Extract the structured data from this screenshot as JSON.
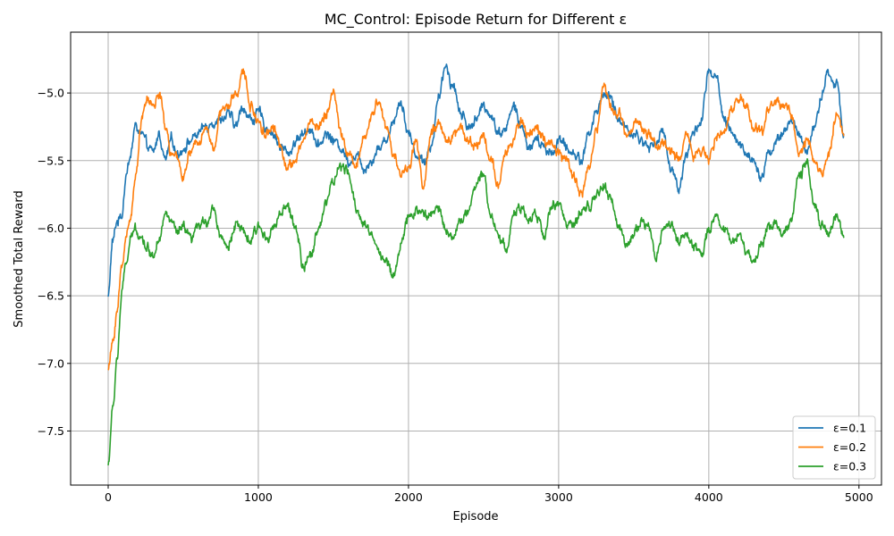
{
  "chart_data": {
    "type": "line",
    "title": "MC_Control: Episode Return for Different ε",
    "xlabel": "Episode",
    "ylabel": "Smoothed Total Reward",
    "xlim": [
      -250,
      5150
    ],
    "ylim": [
      -7.9,
      -4.55
    ],
    "xticks": [
      0,
      1000,
      2000,
      3000,
      4000,
      5000
    ],
    "yticks": [
      -5.0,
      -5.5,
      -6.0,
      -6.5,
      -7.0,
      -7.5
    ],
    "xtick_labels": [
      "0",
      "1000",
      "2000",
      "3000",
      "4000",
      "5000"
    ],
    "ytick_labels": [
      "−5.0",
      "−5.5",
      "−6.0",
      "−6.5",
      "−7.0",
      "−7.5"
    ],
    "grid": true,
    "legend": "bottom-right",
    "x_range": [
      0,
      4900
    ],
    "series": [
      {
        "name": "ε=0.1",
        "color": "#1f77b4",
        "x": [
          0,
          30,
          60,
          90,
          120,
          150,
          180,
          220,
          260,
          300,
          340,
          380,
          420,
          460,
          500,
          550,
          600,
          650,
          700,
          750,
          800,
          850,
          900,
          950,
          1000,
          1050,
          1100,
          1150,
          1200,
          1250,
          1300,
          1350,
          1400,
          1450,
          1500,
          1550,
          1600,
          1650,
          1700,
          1750,
          1800,
          1850,
          1900,
          1950,
          2000,
          2050,
          2100,
          2150,
          2200,
          2250,
          2300,
          2350,
          2400,
          2450,
          2500,
          2550,
          2600,
          2650,
          2700,
          2750,
          2800,
          2850,
          2900,
          2950,
          3000,
          3050,
          3100,
          3150,
          3200,
          3250,
          3300,
          3350,
          3400,
          3450,
          3500,
          3550,
          3600,
          3650,
          3700,
          3750,
          3800,
          3850,
          3900,
          3950,
          4000,
          4050,
          4100,
          4150,
          4200,
          4250,
          4300,
          4350,
          4400,
          4450,
          4500,
          4550,
          4600,
          4650,
          4700,
          4750,
          4800,
          4850,
          4900
        ],
        "y": [
          -6.5,
          -6.1,
          -5.95,
          -5.9,
          -5.6,
          -5.45,
          -5.25,
          -5.3,
          -5.4,
          -5.45,
          -5.3,
          -5.5,
          -5.35,
          -5.45,
          -5.4,
          -5.35,
          -5.3,
          -5.25,
          -5.2,
          -5.2,
          -5.15,
          -5.25,
          -5.1,
          -5.2,
          -5.15,
          -5.25,
          -5.3,
          -5.4,
          -5.45,
          -5.35,
          -5.3,
          -5.25,
          -5.4,
          -5.3,
          -5.35,
          -5.4,
          -5.5,
          -5.45,
          -5.55,
          -5.5,
          -5.4,
          -5.35,
          -5.2,
          -5.05,
          -5.3,
          -5.45,
          -5.5,
          -5.4,
          -5.05,
          -4.8,
          -4.95,
          -5.15,
          -5.25,
          -5.2,
          -5.1,
          -5.15,
          -5.3,
          -5.25,
          -5.1,
          -5.25,
          -5.4,
          -5.35,
          -5.4,
          -5.45,
          -5.35,
          -5.4,
          -5.45,
          -5.5,
          -5.3,
          -5.15,
          -5.0,
          -5.05,
          -5.2,
          -5.25,
          -5.3,
          -5.35,
          -5.4,
          -5.35,
          -5.3,
          -5.55,
          -5.7,
          -5.45,
          -5.3,
          -5.2,
          -4.85,
          -4.9,
          -5.2,
          -5.3,
          -5.35,
          -5.45,
          -5.5,
          -5.6,
          -5.45,
          -5.35,
          -5.3,
          -5.2,
          -5.3,
          -5.45,
          -5.25,
          -5.05,
          -4.85,
          -4.95,
          -5.3
        ]
      },
      {
        "name": "ε=0.2",
        "color": "#ff7f0e",
        "x": [
          0,
          30,
          60,
          90,
          120,
          150,
          180,
          220,
          260,
          300,
          340,
          380,
          420,
          460,
          500,
          550,
          600,
          650,
          700,
          750,
          800,
          850,
          900,
          950,
          1000,
          1050,
          1100,
          1150,
          1200,
          1250,
          1300,
          1350,
          1400,
          1450,
          1500,
          1550,
          1600,
          1650,
          1700,
          1750,
          1800,
          1850,
          1900,
          1950,
          2000,
          2050,
          2100,
          2150,
          2200,
          2250,
          2300,
          2350,
          2400,
          2450,
          2500,
          2550,
          2600,
          2650,
          2700,
          2750,
          2800,
          2850,
          2900,
          2950,
          3000,
          3050,
          3100,
          3150,
          3200,
          3250,
          3300,
          3350,
          3400,
          3450,
          3500,
          3550,
          3600,
          3650,
          3700,
          3750,
          3800,
          3850,
          3900,
          3950,
          4000,
          4050,
          4100,
          4150,
          4200,
          4250,
          4300,
          4350,
          4400,
          4450,
          4500,
          4550,
          4600,
          4650,
          4700,
          4750,
          4800,
          4850,
          4900
        ],
        "y": [
          -7.05,
          -6.85,
          -6.6,
          -6.3,
          -6.05,
          -5.9,
          -5.65,
          -5.2,
          -5.05,
          -5.1,
          -5.0,
          -5.25,
          -5.45,
          -5.5,
          -5.6,
          -5.45,
          -5.35,
          -5.25,
          -5.4,
          -5.15,
          -5.1,
          -5.0,
          -4.85,
          -5.1,
          -5.2,
          -5.3,
          -5.25,
          -5.4,
          -5.55,
          -5.5,
          -5.35,
          -5.2,
          -5.25,
          -5.15,
          -5.0,
          -5.3,
          -5.45,
          -5.55,
          -5.35,
          -5.2,
          -5.05,
          -5.25,
          -5.45,
          -5.6,
          -5.55,
          -5.35,
          -5.7,
          -5.3,
          -5.25,
          -5.35,
          -5.3,
          -5.25,
          -5.35,
          -5.4,
          -5.3,
          -5.5,
          -5.7,
          -5.45,
          -5.35,
          -5.2,
          -5.3,
          -5.25,
          -5.35,
          -5.4,
          -5.45,
          -5.5,
          -5.6,
          -5.75,
          -5.55,
          -5.3,
          -4.95,
          -5.1,
          -5.15,
          -5.3,
          -5.2,
          -5.25,
          -5.3,
          -5.4,
          -5.35,
          -5.45,
          -5.5,
          -5.3,
          -5.45,
          -5.4,
          -5.5,
          -5.35,
          -5.3,
          -5.15,
          -5.0,
          -5.1,
          -5.25,
          -5.3,
          -5.1,
          -5.05,
          -5.1,
          -5.15,
          -5.45,
          -5.35,
          -5.5,
          -5.6,
          -5.45,
          -5.15,
          -5.3
        ]
      },
      {
        "name": "ε=0.3",
        "color": "#2ca02c",
        "x": [
          0,
          30,
          60,
          90,
          120,
          150,
          180,
          220,
          260,
          300,
          340,
          380,
          420,
          460,
          500,
          550,
          600,
          650,
          700,
          750,
          800,
          850,
          900,
          950,
          1000,
          1050,
          1100,
          1150,
          1200,
          1250,
          1300,
          1350,
          1400,
          1450,
          1500,
          1550,
          1600,
          1650,
          1700,
          1750,
          1800,
          1850,
          1900,
          1950,
          2000,
          2050,
          2100,
          2150,
          2200,
          2250,
          2300,
          2350,
          2400,
          2450,
          2500,
          2550,
          2600,
          2650,
          2700,
          2750,
          2800,
          2850,
          2900,
          2950,
          3000,
          3050,
          3100,
          3150,
          3200,
          3250,
          3300,
          3350,
          3400,
          3450,
          3500,
          3550,
          3600,
          3650,
          3700,
          3750,
          3800,
          3850,
          3900,
          3950,
          4000,
          4050,
          4100,
          4150,
          4200,
          4250,
          4300,
          4350,
          4400,
          4450,
          4500,
          4550,
          4600,
          4650,
          4700,
          4750,
          4800,
          4850,
          4900
        ],
        "y": [
          -7.75,
          -7.35,
          -6.95,
          -6.5,
          -6.25,
          -6.1,
          -6.0,
          -6.05,
          -6.15,
          -6.2,
          -6.05,
          -5.9,
          -5.95,
          -6.05,
          -6.0,
          -6.1,
          -6.0,
          -5.95,
          -5.85,
          -6.05,
          -6.15,
          -5.95,
          -6.05,
          -6.1,
          -6.0,
          -6.05,
          -6.0,
          -5.9,
          -5.85,
          -6.0,
          -6.3,
          -6.2,
          -6.0,
          -5.8,
          -5.65,
          -5.55,
          -5.6,
          -5.85,
          -5.95,
          -6.05,
          -6.15,
          -6.25,
          -6.35,
          -6.1,
          -5.95,
          -5.85,
          -5.9,
          -5.9,
          -5.85,
          -6.0,
          -6.05,
          -5.95,
          -5.85,
          -5.7,
          -5.6,
          -5.9,
          -6.05,
          -6.15,
          -5.9,
          -5.85,
          -5.95,
          -5.9,
          -6.05,
          -5.85,
          -5.8,
          -5.95,
          -6.0,
          -5.9,
          -5.85,
          -5.75,
          -5.7,
          -5.8,
          -6.0,
          -6.1,
          -6.05,
          -5.95,
          -6.0,
          -6.2,
          -6.0,
          -5.95,
          -6.1,
          -6.05,
          -6.15,
          -6.2,
          -6.0,
          -5.9,
          -6.0,
          -6.1,
          -6.05,
          -6.15,
          -6.25,
          -6.1,
          -6.0,
          -5.95,
          -6.05,
          -5.95,
          -5.6,
          -5.5,
          -5.8,
          -6.0,
          -6.05,
          -5.9,
          -6.05
        ]
      }
    ]
  }
}
